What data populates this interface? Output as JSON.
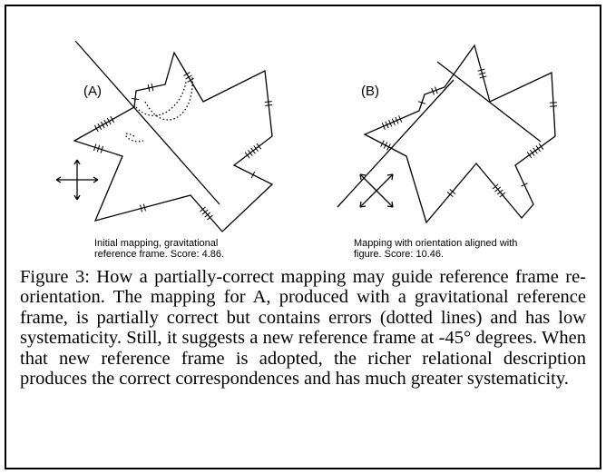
{
  "figure": {
    "panel_a": {
      "label": "(A)",
      "caption_lines": [
        "Initial mapping, gravitational",
        "reference frame.  Score: 4.86."
      ]
    },
    "panel_b": {
      "label": "(B)",
      "caption_lines": [
        "Mapping with orientation aligned with",
        "figure.  Score: 10.46."
      ]
    },
    "caption": "Figure 3: How a partially-correct mapping may guide reference frame re-orientation. The mapping for A, produced with a gravitational reference frame, is partially correct but contains errors (dotted lines) and has low systematicity. Still, it suggests a new reference frame at -45° degrees. When that new reference frame is adopted, the richer relational description produces the correct correspondences and has much greater systematicity."
  }
}
